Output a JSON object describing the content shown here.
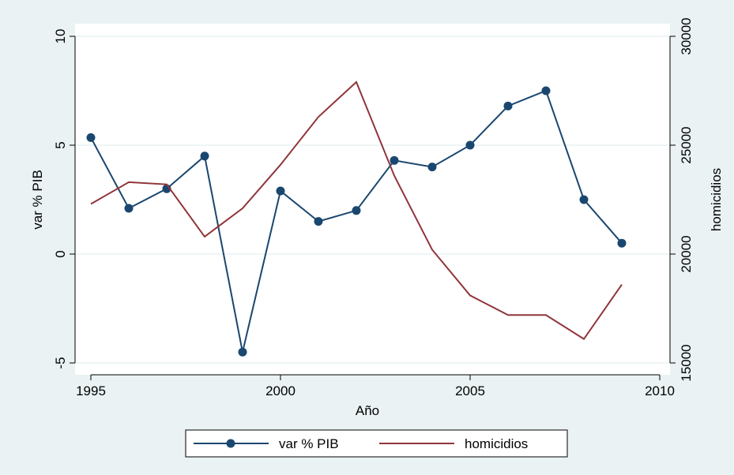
{
  "chart_data": {
    "type": "line",
    "x_label": "Año",
    "y_label": "var % PIB",
    "y2_label": "homicidios",
    "x": [
      1995,
      1996,
      1997,
      1998,
      1999,
      2000,
      2001,
      2002,
      2003,
      2004,
      2005,
      2006,
      2007,
      2008,
      2009
    ],
    "series": [
      {
        "name": "var % PIB",
        "color": "#1a476f",
        "marker": true,
        "values": [
          5.35,
          2.1,
          3.0,
          4.5,
          -4.5,
          2.9,
          1.5,
          2.0,
          4.3,
          4.0,
          5.0,
          6.8,
          7.5,
          2.5,
          0.5
        ]
      },
      {
        "name": "homicidios",
        "color": "#90353b",
        "marker": false,
        "axis": "y2",
        "values": [
          22300,
          23300,
          23200,
          20800,
          22100,
          24100,
          26300,
          27900,
          23600,
          20200,
          18100,
          17200,
          17200,
          16100,
          18600
        ]
      }
    ],
    "xlim": [
      1995,
      2010
    ],
    "xticks": [
      1995,
      2000,
      2005,
      2010
    ],
    "ylim": [
      -5,
      10
    ],
    "yticks": [
      -5,
      0,
      5,
      10
    ],
    "y2lim": [
      15000,
      30000
    ],
    "y2ticks": [
      15000,
      20000,
      25000,
      30000
    ],
    "grid": true,
    "legend_position": "bottom"
  }
}
